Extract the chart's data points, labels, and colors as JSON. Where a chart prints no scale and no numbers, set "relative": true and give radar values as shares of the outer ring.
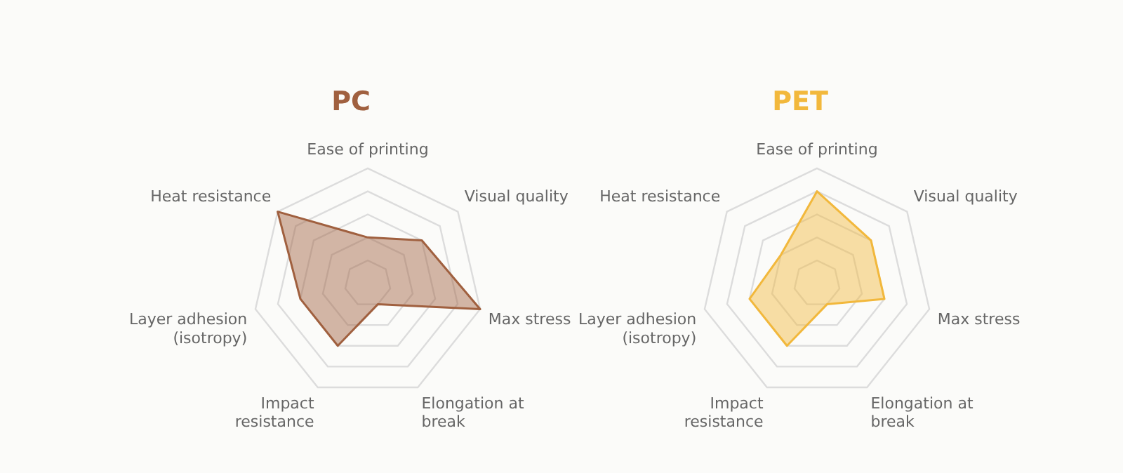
{
  "chart_data": [
    {
      "type": "radar",
      "title": "PC",
      "relative": true,
      "grid": true,
      "categories": [
        "Ease of printing",
        "Visual quality",
        "Max stress",
        "Elongation at break",
        "Impact resistance",
        "Layer adhesion (isotropy)",
        "Heat resistance"
      ],
      "series": [
        {
          "color": "#a0603f",
          "values": [
            0.4,
            0.6,
            1,
            0.2,
            0.6,
            0.6,
            1
          ]
        }
      ]
    },
    {
      "type": "radar",
      "title": "PET",
      "relative": true,
      "grid": true,
      "categories": [
        "Ease of printing",
        "Visual quality",
        "Max stress",
        "Elongation at break",
        "Impact resistance",
        "Layer adhesion (isotropy)",
        "Heat resistance"
      ],
      "series": [
        {
          "color": "#f2b83c",
          "values": [
            0.8,
            0.6,
            0.6,
            0.2,
            0.6,
            0.6,
            0.4
          ]
        }
      ]
    }
  ]
}
